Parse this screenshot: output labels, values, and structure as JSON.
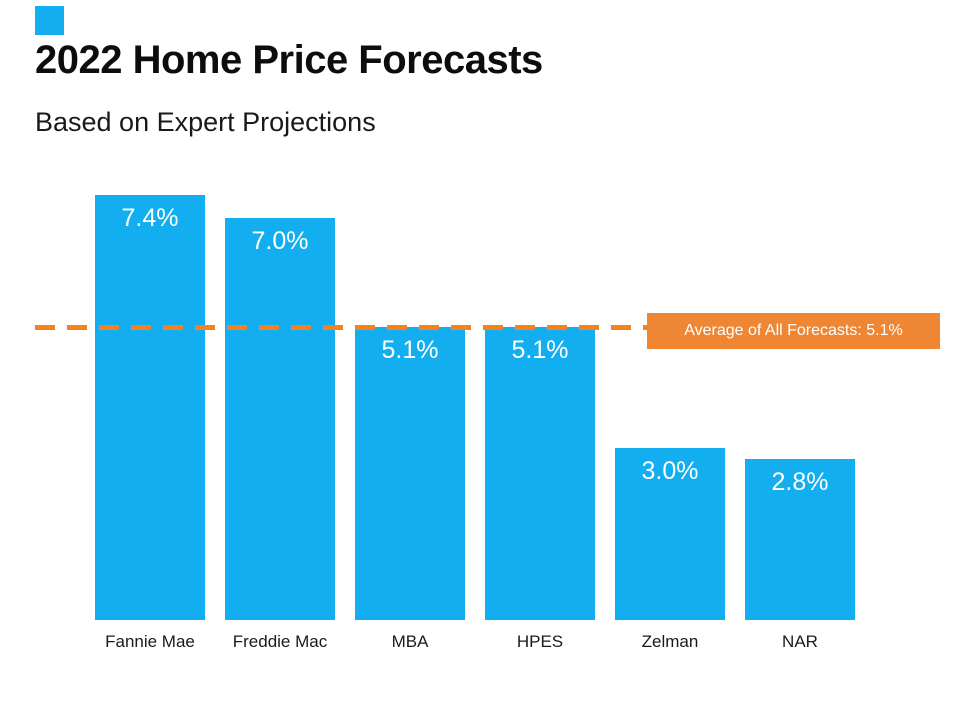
{
  "page": {
    "title": "2022 Home Price Forecasts",
    "subtitle": "Based on Expert Projections"
  },
  "chart_data": {
    "type": "bar",
    "title": "2022 Home Price Forecasts",
    "subtitle": "Based on Expert Projections",
    "categories": [
      "Fannie Mae",
      "Freddie Mac",
      "MBA",
      "HPES",
      "Zelman",
      "NAR"
    ],
    "values": [
      7.4,
      7.0,
      5.1,
      5.1,
      3.0,
      2.8
    ],
    "value_labels": [
      "7.4%",
      "7.0%",
      "5.1%",
      "5.1%",
      "3.0%",
      "2.8%"
    ],
    "average": 5.1,
    "average_label": "Average of All Forecasts: 5.1%",
    "ylim": [
      0,
      7.4
    ],
    "grid": false,
    "legend": "none",
    "bar_color": "#12AEEF",
    "average_line_color": "#F5821F",
    "average_box_color": "#EE8633",
    "value_label_color": "#FFFFFF"
  }
}
